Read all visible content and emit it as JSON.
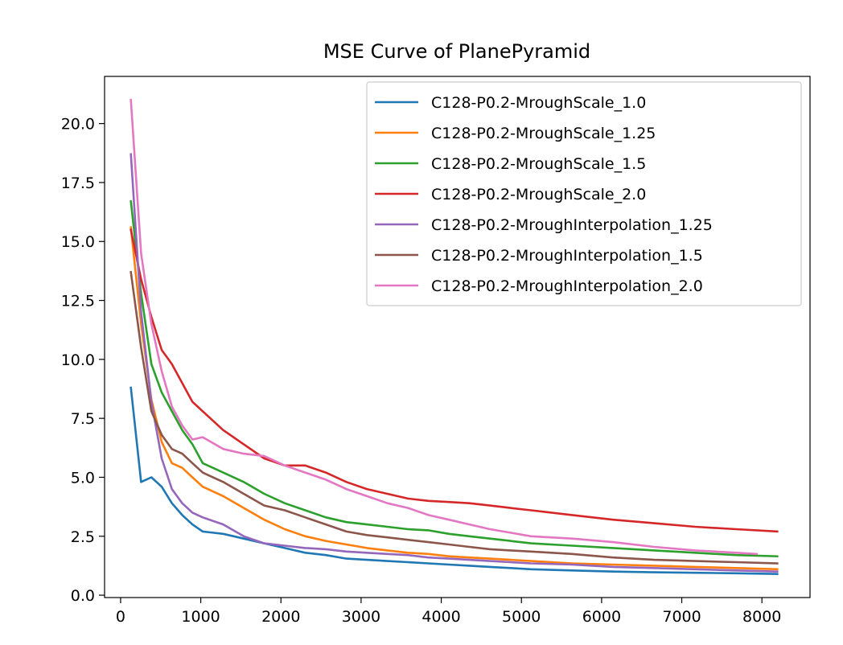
{
  "chart_data": {
    "type": "line",
    "title": "MSE Curve of PlanePyramid",
    "xlabel": "",
    "ylabel": "",
    "xlim": [
      -200,
      8600
    ],
    "ylim": [
      -0.1,
      22.0
    ],
    "xticks": [
      0,
      1000,
      2000,
      3000,
      4000,
      5000,
      6000,
      7000,
      8000
    ],
    "xtick_labels": [
      "0",
      "1000",
      "2000",
      "3000",
      "4000",
      "5000",
      "6000",
      "7000",
      "8000"
    ],
    "yticks": [
      0.0,
      2.5,
      5.0,
      7.5,
      10.0,
      12.5,
      15.0,
      17.5,
      20.0
    ],
    "ytick_labels": [
      "0.0",
      "2.5",
      "5.0",
      "7.5",
      "10.0",
      "12.5",
      "15.0",
      "17.5",
      "20.0"
    ],
    "grid": false,
    "legend_position": "top-right",
    "series": [
      {
        "name": "C128-P0.2-MroughScale_1.0",
        "color": "#1f77b4",
        "x": [
          128,
          256,
          384,
          512,
          640,
          768,
          896,
          1024,
          1280,
          1536,
          1792,
          2048,
          2304,
          2560,
          2816,
          3072,
          3328,
          3584,
          3840,
          4096,
          4352,
          4608,
          4864,
          5120,
          5632,
          6144,
          6656,
          7168,
          7680,
          8192
        ],
        "y": [
          8.8,
          4.8,
          5.0,
          4.6,
          3.9,
          3.4,
          3.0,
          2.7,
          2.6,
          2.4,
          2.2,
          2.0,
          1.8,
          1.7,
          1.55,
          1.5,
          1.45,
          1.4,
          1.35,
          1.3,
          1.25,
          1.2,
          1.15,
          1.1,
          1.05,
          1.0,
          0.97,
          0.95,
          0.93,
          0.9
        ]
      },
      {
        "name": "C128-P0.2-MroughScale_1.25",
        "color": "#ff7f0e",
        "x": [
          128,
          256,
          384,
          512,
          640,
          768,
          896,
          1024,
          1280,
          1536,
          1792,
          2048,
          2304,
          2560,
          2816,
          3072,
          3328,
          3584,
          3840,
          4096,
          4352,
          4608,
          4864,
          5120,
          5632,
          6144,
          6656,
          7168,
          7680,
          8192
        ],
        "y": [
          15.6,
          11.5,
          8.3,
          6.5,
          5.6,
          5.4,
          5.0,
          4.6,
          4.2,
          3.7,
          3.2,
          2.8,
          2.5,
          2.3,
          2.15,
          2.0,
          1.9,
          1.8,
          1.75,
          1.65,
          1.6,
          1.55,
          1.5,
          1.45,
          1.35,
          1.3,
          1.25,
          1.2,
          1.15,
          1.1
        ]
      },
      {
        "name": "C128-P0.2-MroughScale_1.5",
        "color": "#2ca02c",
        "x": [
          128,
          256,
          384,
          512,
          640,
          768,
          896,
          1024,
          1280,
          1536,
          1792,
          2048,
          2304,
          2560,
          2816,
          3072,
          3328,
          3584,
          3840,
          4096,
          4352,
          4608,
          4864,
          5120,
          5632,
          6144,
          6656,
          7168,
          7680,
          8192
        ],
        "y": [
          16.7,
          12.8,
          9.8,
          8.6,
          7.8,
          7.0,
          6.4,
          5.6,
          5.2,
          4.8,
          4.3,
          3.9,
          3.6,
          3.3,
          3.1,
          3.0,
          2.9,
          2.8,
          2.75,
          2.6,
          2.5,
          2.4,
          2.3,
          2.2,
          2.1,
          2.0,
          1.9,
          1.8,
          1.7,
          1.65
        ]
      },
      {
        "name": "C128-P0.2-MroughScale_2.0",
        "color": "#d62728",
        "x": [
          128,
          256,
          384,
          512,
          640,
          768,
          896,
          1024,
          1280,
          1536,
          1792,
          2048,
          2304,
          2560,
          2816,
          3072,
          3328,
          3584,
          3840,
          4096,
          4352,
          4608,
          4864,
          5120,
          5632,
          6144,
          6656,
          7168,
          7680,
          8192
        ],
        "y": [
          15.5,
          13.4,
          11.8,
          10.4,
          9.8,
          9.0,
          8.2,
          7.8,
          7.0,
          6.4,
          5.8,
          5.5,
          5.5,
          5.2,
          4.8,
          4.5,
          4.3,
          4.1,
          4.0,
          3.95,
          3.9,
          3.8,
          3.7,
          3.6,
          3.4,
          3.2,
          3.05,
          2.9,
          2.8,
          2.7
        ]
      },
      {
        "name": "C128-P0.2-MroughInterpolation_1.25",
        "color": "#9467bd",
        "x": [
          128,
          256,
          384,
          512,
          640,
          768,
          896,
          1024,
          1280,
          1536,
          1792,
          2048,
          2304,
          2560,
          2816,
          3072,
          3328,
          3584,
          3840,
          4096,
          4352,
          4608,
          4864,
          5120,
          5632,
          6144,
          6656,
          7168,
          7680,
          8192
        ],
        "y": [
          18.7,
          12.0,
          8.2,
          5.8,
          4.5,
          3.9,
          3.5,
          3.3,
          3.0,
          2.5,
          2.2,
          2.1,
          2.0,
          1.95,
          1.85,
          1.8,
          1.75,
          1.7,
          1.6,
          1.55,
          1.5,
          1.45,
          1.4,
          1.35,
          1.3,
          1.2,
          1.15,
          1.1,
          1.05,
          1.0
        ]
      },
      {
        "name": "C128-P0.2-MroughInterpolation_1.5",
        "color": "#8c564b",
        "x": [
          128,
          256,
          384,
          512,
          640,
          768,
          896,
          1024,
          1280,
          1536,
          1792,
          2048,
          2304,
          2560,
          2816,
          3072,
          3328,
          3584,
          3840,
          4096,
          4352,
          4608,
          4864,
          5120,
          5632,
          6144,
          6656,
          7168,
          7680,
          8192
        ],
        "y": [
          13.7,
          10.5,
          7.8,
          6.8,
          6.2,
          6.0,
          5.6,
          5.2,
          4.8,
          4.3,
          3.8,
          3.6,
          3.3,
          3.0,
          2.7,
          2.55,
          2.45,
          2.35,
          2.25,
          2.15,
          2.05,
          1.95,
          1.9,
          1.85,
          1.75,
          1.6,
          1.5,
          1.45,
          1.4,
          1.35
        ]
      },
      {
        "name": "C128-P0.2-MroughInterpolation_2.0",
        "color": "#e377c2",
        "x": [
          128,
          256,
          384,
          512,
          640,
          768,
          896,
          1024,
          1280,
          1536,
          1792,
          2048,
          2304,
          2560,
          2816,
          3072,
          3328,
          3584,
          3840,
          4096,
          4352,
          4608,
          4864,
          5120,
          5632,
          6144,
          6656,
          7168,
          7680,
          7936
        ],
        "y": [
          21.0,
          14.5,
          11.5,
          9.5,
          8.0,
          7.2,
          6.6,
          6.7,
          6.2,
          6.0,
          5.9,
          5.5,
          5.2,
          4.9,
          4.5,
          4.2,
          3.9,
          3.7,
          3.4,
          3.2,
          3.0,
          2.8,
          2.65,
          2.5,
          2.4,
          2.25,
          2.05,
          1.9,
          1.8,
          1.75
        ]
      }
    ]
  }
}
